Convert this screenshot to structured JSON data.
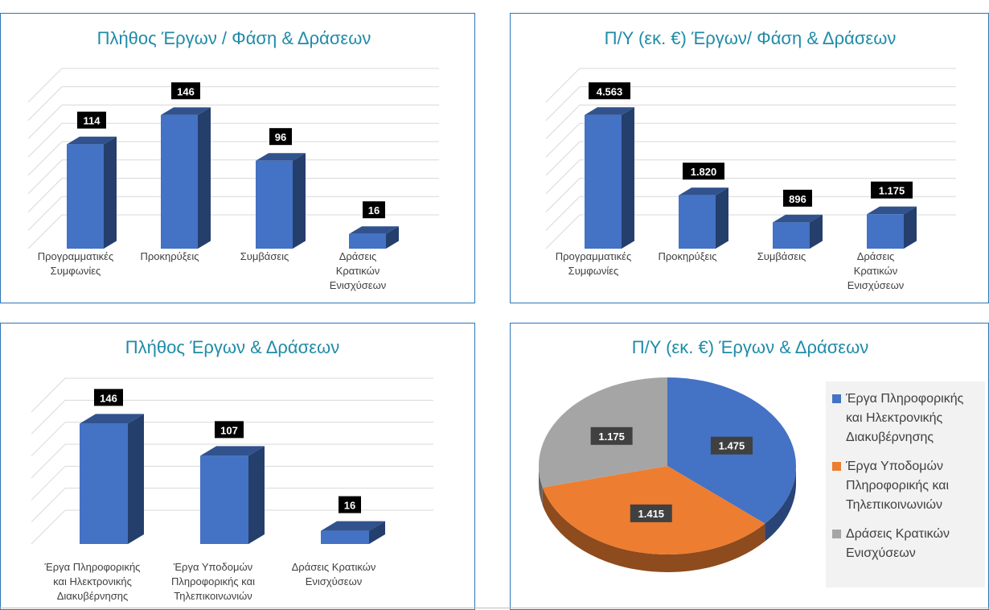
{
  "charts": [
    {
      "type": "bar",
      "title": "Πλήθος Έργων / Φάση & Δράσεων",
      "categories": [
        [
          "Προγραμματικές",
          "Συμφωνίες"
        ],
        [
          "Προκηρύξεις"
        ],
        [
          "Συμβάσεις"
        ],
        [
          "Δράσεις",
          "Κρατικών",
          "Ενισχύσεων"
        ]
      ],
      "values": [
        114,
        146,
        96,
        16
      ],
      "value_labels": [
        "114",
        "146",
        "96",
        "16"
      ],
      "ylim": [
        0,
        160
      ],
      "grid": true,
      "bar_color": "#4472c4"
    },
    {
      "type": "bar",
      "title": "Π/Υ (εκ. €) Έργων/ Φάση & Δράσεων",
      "categories": [
        [
          "Προγραμματικές",
          "Συμφωνίες"
        ],
        [
          "Προκηρύξεις"
        ],
        [
          "Συμβάσεις"
        ],
        [
          "Δράσεις",
          "Κρατικών",
          "Ενισχύσεων"
        ]
      ],
      "values": [
        4563,
        1820,
        896,
        1175
      ],
      "value_labels": [
        "4.563",
        "1.820",
        "896",
        "1.175"
      ],
      "ylim": [
        0,
        5000
      ],
      "grid": true,
      "bar_color": "#4472c4"
    },
    {
      "type": "bar",
      "title": "Πλήθος Έργων & Δράσεων",
      "categories": [
        [
          "Έργα Πληροφορικής",
          "και Ηλεκτρονικής",
          "Διακυβέρνησης"
        ],
        [
          "Έργα Υποδομών",
          "Πληροφορικής και",
          "Τηλεπικοινωνιών"
        ],
        [
          "Δράσεις Κρατικών",
          "Ενισχύσεων"
        ]
      ],
      "values": [
        146,
        107,
        16
      ],
      "value_labels": [
        "146",
        "107",
        "16"
      ],
      "ylim": [
        0,
        160
      ],
      "grid": true,
      "bar_color": "#4472c4"
    },
    {
      "type": "pie",
      "title": "Π/Υ (εκ. €) Έργων & Δράσεων",
      "slices": [
        {
          "value": 1475,
          "label": "1.475",
          "color": "#4472c4"
        },
        {
          "value": 1415,
          "label": "1.415",
          "color": "#ed7d31"
        },
        {
          "value": 1175,
          "label": "1.175",
          "color": "#a5a5a5"
        }
      ],
      "legend": [
        {
          "lines": [
            "Έργα Πληροφορικής",
            "και Ηλεκτρονικής",
            "Διακυβέρνησης"
          ],
          "color": "#4472c4"
        },
        {
          "lines": [
            "Έργα Υποδομών",
            "Πληροφορικής και",
            "Τηλεπικοινωνιών"
          ],
          "color": "#ed7d31"
        },
        {
          "lines": [
            "Δράσεις Κρατικών",
            "Ενισχύσεων"
          ],
          "color": "#a5a5a5"
        }
      ],
      "legend_position": "right"
    }
  ],
  "colors": {
    "title": "#1f8ba8",
    "panel_border": "#2e75b6",
    "grid": "#d9d9d9",
    "label_bg": "#000000"
  }
}
